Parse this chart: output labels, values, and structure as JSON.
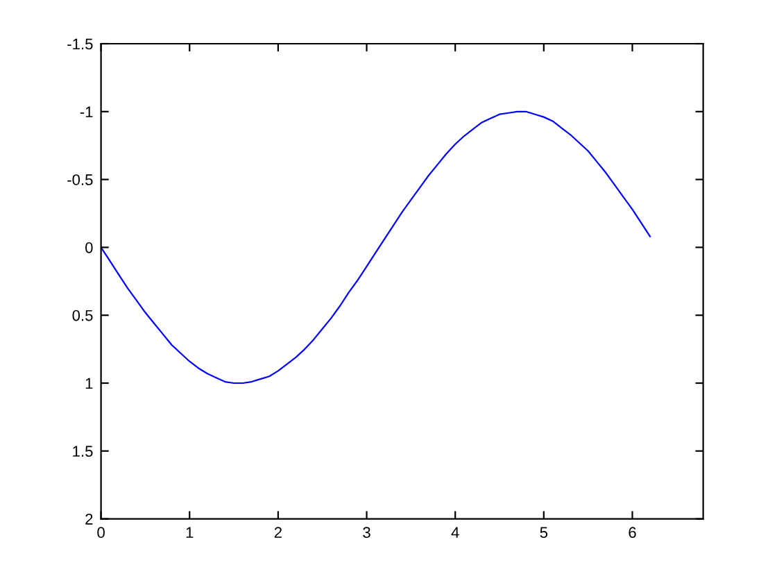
{
  "chart_data": {
    "type": "line",
    "x": [
      0,
      0.1,
      0.2,
      0.3,
      0.4,
      0.5,
      0.6,
      0.7,
      0.8,
      0.9,
      1.0,
      1.1,
      1.2,
      1.3,
      1.4,
      1.5,
      1.6,
      1.7,
      1.8,
      1.9,
      2.0,
      2.1,
      2.2,
      2.3,
      2.4,
      2.5,
      2.6,
      2.7,
      2.8,
      2.9,
      3.0,
      3.1,
      3.2,
      3.3,
      3.4,
      3.5,
      3.6,
      3.7,
      3.8,
      3.9,
      4.0,
      4.1,
      4.2,
      4.3,
      4.4,
      4.5,
      4.6,
      4.7,
      4.8,
      4.9,
      5.0,
      5.1,
      5.2,
      5.3,
      5.4,
      5.5,
      5.6,
      5.7,
      5.8,
      5.9,
      6.0,
      6.1,
      6.2
    ],
    "values": [
      0,
      0.1,
      0.2,
      0.3,
      0.39,
      0.48,
      0.56,
      0.64,
      0.72,
      0.78,
      0.84,
      0.89,
      0.93,
      0.96,
      0.99,
      1.0,
      1.0,
      0.99,
      0.97,
      0.95,
      0.91,
      0.86,
      0.81,
      0.75,
      0.68,
      0.6,
      0.52,
      0.43,
      0.33,
      0.24,
      0.14,
      0.04,
      -0.06,
      -0.16,
      -0.26,
      -0.35,
      -0.44,
      -0.53,
      -0.61,
      -0.69,
      -0.76,
      -0.82,
      -0.87,
      -0.92,
      -0.95,
      -0.98,
      -0.99,
      -1.0,
      -1.0,
      -0.98,
      -0.96,
      -0.93,
      -0.88,
      -0.83,
      -0.77,
      -0.71,
      -0.63,
      -0.55,
      -0.46,
      -0.37,
      -0.28,
      -0.18,
      -0.08
    ],
    "color": "#0000ff",
    "xlim": [
      0,
      6.8
    ],
    "ylim": [
      2,
      -1.5
    ],
    "xticks": [
      0,
      1,
      2,
      3,
      4,
      5,
      6
    ],
    "yticks": [
      -1.5,
      -1,
      -0.5,
      0,
      0.5,
      1,
      1.5,
      2
    ]
  }
}
